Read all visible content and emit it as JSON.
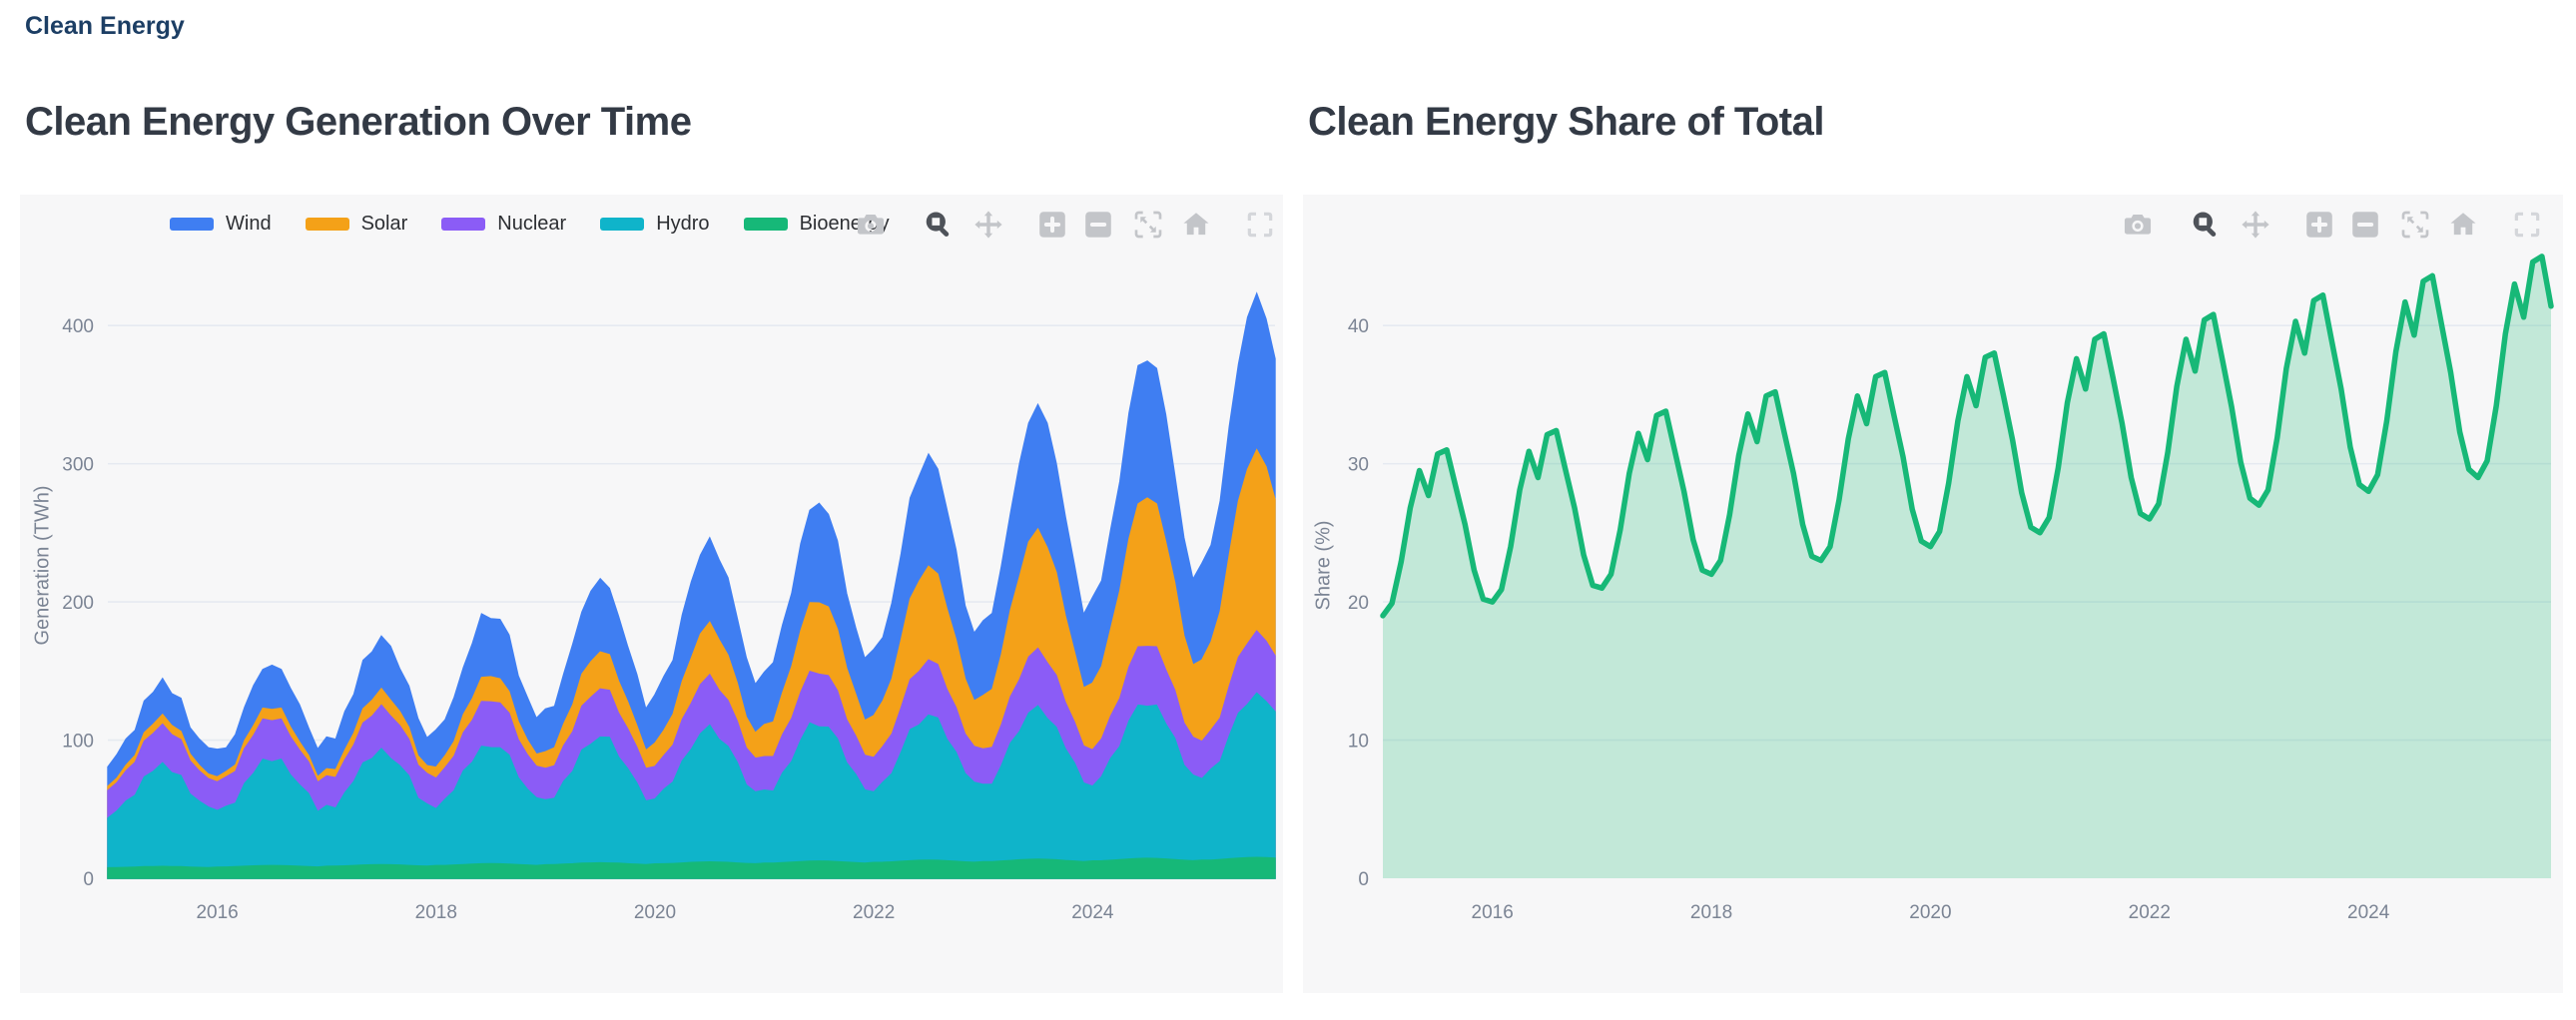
{
  "page": {
    "breadcrumb": "Clean Energy"
  },
  "colors": {
    "wind": "#3f7ef2",
    "solar": "#f4a118",
    "nuclear": "#8b5cf6",
    "hydro": "#0fb4ca",
    "bioenergy": "#16b878",
    "share_line": "#17b877",
    "share_fill": "rgba(23,184,119,0.24)",
    "card_bg": "#f7f7f8",
    "grid": "#e6eaf1",
    "tick_text": "#7b8494",
    "title_text": "#333a45",
    "breadcrumb_text": "#1c3e64",
    "modebar_icon": "#c3c5c9",
    "modebar_icon_active": "#4e5259",
    "modebar_icon_light": "#d4d6da"
  },
  "charts": [
    {
      "title": "Clean Energy Generation Over Time",
      "y_axis": {
        "title": "Generation (TWh)",
        "ticks": [
          0,
          100,
          200,
          300,
          400
        ],
        "range": [
          0,
          455
        ]
      },
      "x_axis": {
        "ticks": [
          2016,
          2018,
          2020,
          2022,
          2024
        ]
      },
      "legend": [
        {
          "label": "Wind",
          "color_key": "wind"
        },
        {
          "label": "Solar",
          "color_key": "solar"
        },
        {
          "label": "Nuclear",
          "color_key": "nuclear"
        },
        {
          "label": "Hydro",
          "color_key": "hydro"
        },
        {
          "label": "Bioenergy",
          "color_key": "bioenergy"
        }
      ],
      "modebar": [
        "camera",
        "zoom",
        "pan",
        "zoom-in",
        "zoom-out",
        "autoscale",
        "reset-home",
        "fullscreen"
      ],
      "modebar_active": "zoom"
    },
    {
      "title": "Clean Energy Share of Total",
      "y_axis": {
        "title": "Share (%)",
        "ticks": [
          0,
          10,
          20,
          30,
          40
        ],
        "range": [
          0,
          45.5
        ]
      },
      "x_axis": {
        "ticks": [
          2016,
          2018,
          2020,
          2022,
          2024
        ]
      },
      "legend": [],
      "modebar": [
        "camera",
        "zoom",
        "pan",
        "zoom-in",
        "zoom-out",
        "autoscale",
        "reset-home",
        "fullscreen"
      ],
      "modebar_active": "zoom"
    }
  ],
  "chart_data": [
    {
      "type": "area",
      "stacked": true,
      "title": "Clean Energy Generation Over Time",
      "xlabel": "",
      "ylabel": "Generation (TWh)",
      "ylim": [
        0,
        455
      ],
      "x_start": "2015-01",
      "x_freq": "monthly",
      "n_points": 129,
      "x_tick_labels": [
        "2016",
        "2018",
        "2020",
        "2022",
        "2024"
      ],
      "legend_position": "top-left-horizontal",
      "grid": true,
      "series": [
        {
          "name": "Bioenergy",
          "values": [
            7.5,
            7.6,
            7.8,
            8.0,
            8.3,
            8.4,
            8.5,
            8.4,
            8.3,
            8.0,
            7.8,
            7.6,
            8.0,
            8.1,
            8.3,
            8.6,
            8.9,
            9.1,
            9.2,
            9.1,
            8.9,
            8.6,
            8.3,
            8.1,
            8.6,
            8.7,
            8.9,
            9.2,
            9.5,
            9.7,
            9.8,
            9.7,
            9.5,
            9.2,
            8.9,
            8.7,
            9.2,
            9.2,
            9.5,
            9.8,
            10.1,
            10.4,
            10.5,
            10.4,
            10.1,
            9.8,
            9.5,
            9.2,
            9.7,
            9.8,
            10.1,
            10.4,
            10.8,
            11.0,
            11.1,
            11.0,
            10.8,
            10.4,
            10.1,
            9.8,
            10.3,
            10.4,
            10.6,
            11.0,
            11.4,
            11.6,
            11.8,
            11.6,
            11.4,
            11.0,
            10.6,
            10.4,
            10.8,
            10.9,
            11.2,
            11.6,
            12.0,
            12.3,
            12.4,
            12.3,
            12.0,
            11.6,
            11.2,
            10.9,
            11.4,
            11.5,
            11.8,
            12.2,
            12.6,
            12.9,
            13.1,
            12.9,
            12.6,
            12.2,
            11.8,
            11.5,
            11.9,
            12.0,
            12.4,
            12.8,
            13.3,
            13.6,
            13.7,
            13.6,
            13.3,
            12.8,
            12.4,
            12.0,
            12.5,
            12.6,
            12.9,
            13.4,
            13.9,
            14.2,
            14.4,
            14.2,
            13.9,
            13.4,
            12.9,
            12.6,
            13.0,
            13.1,
            13.5,
            14.0,
            14.5,
            14.9,
            15.0,
            14.9,
            14.5
          ]
        },
        {
          "name": "Hydro",
          "values": [
            36,
            41,
            48,
            52,
            65,
            69,
            75,
            68,
            66,
            53,
            48,
            44,
            41,
            44,
            46,
            60,
            67,
            77,
            75,
            77,
            66,
            59,
            53,
            40,
            44,
            42,
            53,
            61,
            74,
            77,
            84,
            77,
            72,
            65,
            49,
            45,
            41,
            48,
            54,
            68,
            74,
            85,
            84,
            84,
            79,
            63,
            55,
            49,
            47,
            48,
            60,
            67,
            82,
            86,
            91,
            91,
            77,
            69,
            59,
            46,
            47,
            54,
            59,
            74,
            82,
            93,
            99,
            89,
            84,
            73,
            57,
            52,
            53,
            52,
            65,
            73,
            88,
            100,
            97,
            97,
            89,
            72,
            64,
            53,
            51,
            58,
            64,
            79,
            95,
            98,
            105,
            103,
            88,
            79,
            64,
            58,
            56,
            56,
            69,
            85,
            93,
            106,
            111,
            102,
            96,
            81,
            71,
            57,
            54,
            61,
            74,
            82,
            100,
            111,
            110,
            111,
            98,
            88,
            69,
            62,
            59,
            66,
            71,
            89,
            105,
            111,
            119,
            113,
            106
          ]
        },
        {
          "name": "Nuclear",
          "values": [
            20,
            20.5,
            22,
            24,
            26,
            27.5,
            28,
            27.5,
            26,
            24,
            22,
            20.5,
            20.7,
            21.3,
            23,
            25.2,
            27.5,
            29.1,
            29.7,
            29.1,
            27.5,
            25.2,
            23,
            21.3,
            21.4,
            22.1,
            23.9,
            26.4,
            28.9,
            30.7,
            31.4,
            30.7,
            28.9,
            26.4,
            23.9,
            22.1,
            22.1,
            22.8,
            24.9,
            27.6,
            30.4,
            32.4,
            33.1,
            32.4,
            30.4,
            27.6,
            24.9,
            22.8,
            22.8,
            23.6,
            25.8,
            28.8,
            31.8,
            34,
            34.8,
            34,
            31.8,
            28.8,
            25.8,
            23.6,
            23.5,
            24.4,
            26.8,
            30,
            33.3,
            35.6,
            36.5,
            35.6,
            33.3,
            30,
            26.8,
            24.4,
            24.2,
            25.1,
            27.7,
            31.2,
            34.7,
            37.3,
            38.2,
            37.3,
            34.7,
            31.2,
            27.7,
            25.1,
            24.9,
            25.9,
            28.7,
            32.4,
            36.2,
            38.9,
            39.9,
            38.9,
            36.2,
            32.4,
            28.7,
            25.9,
            25.6,
            26.7,
            29.6,
            33.6,
            37.6,
            40.5,
            41.6,
            40.5,
            37.6,
            33.6,
            29.6,
            26.7,
            26.3,
            27.4,
            30.6,
            34.8,
            39.1,
            42.2,
            43.3,
            42.2,
            39.1,
            34.8,
            30.6,
            27.4,
            27,
            28.2,
            31.5,
            36,
            40.5,
            43.8,
            45,
            43.8,
            40.5
          ]
        },
        {
          "name": "Solar",
          "values": [
            3,
            3.3,
            4,
            5,
            6,
            6.7,
            7,
            6.7,
            6,
            5,
            4,
            3.3,
            3.6,
            3.9,
            4.7,
            5.9,
            7.1,
            7.9,
            8.2,
            7.9,
            7.1,
            5.9,
            4.7,
            3.9,
            5.2,
            5.7,
            6.9,
            8.6,
            10.3,
            11.5,
            12,
            11.5,
            10.3,
            8.6,
            6.9,
            5.7,
            8,
            8.7,
            10.6,
            13.1,
            15.6,
            17.5,
            18.2,
            17.5,
            15.6,
            13.1,
            10.6,
            8.7,
            12,
            13,
            15.7,
            19.4,
            23.1,
            25.8,
            26.8,
            25.8,
            23.1,
            19.4,
            15.7,
            13,
            17,
            18.4,
            22.3,
            27.5,
            32.8,
            36.6,
            38,
            36.6,
            32.8,
            27.5,
            22.3,
            18.4,
            23.2,
            25.1,
            30.3,
            37.4,
            44.5,
            49.7,
            51.6,
            49.7,
            44.5,
            37.4,
            30.3,
            25.1,
            30.4,
            32.9,
            39.8,
            49.1,
            58.4,
            65.3,
            67.8,
            65.3,
            58.4,
            49.1,
            39.8,
            32.9,
            38.8,
            42,
            50.7,
            62.6,
            74.5,
            83.2,
            86.4,
            83.2,
            74.5,
            62.6,
            50.7,
            42,
            48.4,
            52.3,
            63.1,
            77.9,
            92.7,
            103.5,
            107.4,
            103.5,
            92.7,
            77.9,
            63.1,
            52.3,
            59,
            63.8,
            77,
            95,
            113,
            126.2,
            131,
            126.2,
            113
          ]
        },
        {
          "name": "Wind",
          "values": [
            14,
            17,
            19,
            18,
            23,
            23,
            26,
            23,
            24,
            19,
            19,
            19,
            20,
            17,
            22,
            24,
            29,
            28,
            32,
            28,
            28,
            27,
            20,
            20,
            23,
            22,
            28,
            28,
            35,
            35,
            38,
            39,
            31,
            30,
            27,
            20,
            27,
            26,
            32,
            34,
            40,
            46,
            42,
            43,
            41,
            33,
            31,
            26,
            31,
            30,
            36,
            44,
            45,
            51,
            53,
            48,
            47,
            40,
            37,
            30,
            35,
            39,
            39,
            48,
            55,
            57,
            61,
            58,
            56,
            47,
            43,
            35,
            38,
            43,
            49,
            53,
            63,
            67,
            72,
            67,
            64,
            54,
            48,
            45,
            48,
            46,
            55,
            62,
            73,
            76,
            81,
            76,
            72,
            65,
            53,
            49,
            54,
            55,
            64,
            70,
            82,
            86,
            90,
            90,
            79,
            72,
            63,
            53,
            62,
            62,
            72,
            79,
            91,
            100,
            99,
            98,
            92,
            78,
            71,
            62,
            70,
            70,
            80,
            93,
            99,
            110,
            113,
            107,
            102
          ]
        }
      ]
    },
    {
      "type": "area",
      "stacked": false,
      "title": "Clean Energy Share of Total",
      "xlabel": "",
      "ylabel": "Share (%)",
      "ylim": [
        0,
        45.5
      ],
      "x_start": "2015-01",
      "x_freq": "monthly",
      "n_points": 129,
      "x_tick_labels": [
        "2016",
        "2018",
        "2020",
        "2022",
        "2024"
      ],
      "grid": true,
      "series": [
        {
          "name": "Clean Energy Share",
          "values": [
            19,
            19.9,
            22.9,
            26.8,
            29.5,
            27.7,
            30.7,
            31,
            28.3,
            25.6,
            22.3,
            20.2,
            20,
            20.9,
            24,
            28.1,
            30.9,
            29,
            32.1,
            32.4,
            29.6,
            26.8,
            23.4,
            21.2,
            21,
            22,
            25.2,
            29.3,
            32.2,
            30.3,
            33.5,
            33.8,
            30.9,
            28,
            24.5,
            22.3,
            22,
            23,
            26.3,
            30.6,
            33.6,
            31.6,
            34.9,
            35.2,
            32.2,
            29.3,
            25.6,
            23.3,
            23,
            24,
            27.4,
            31.8,
            34.9,
            32.9,
            36.3,
            36.6,
            33.5,
            30.5,
            26.7,
            24.4,
            24,
            25.1,
            28.6,
            33.1,
            36.3,
            34.2,
            37.7,
            38,
            34.9,
            31.7,
            27.9,
            25.4,
            25,
            26.1,
            29.7,
            34.4,
            37.6,
            35.4,
            39,
            39.4,
            36.2,
            32.9,
            29,
            26.4,
            26,
            27.1,
            30.8,
            35.6,
            39,
            36.7,
            40.4,
            40.8,
            37.5,
            34.1,
            30.1,
            27.5,
            27,
            28.1,
            31.9,
            36.9,
            40.3,
            38,
            41.8,
            42.2,
            38.8,
            35.4,
            31.2,
            28.5,
            28,
            29.2,
            33.1,
            38.1,
            41.7,
            39.3,
            43.2,
            43.6,
            40.1,
            36.6,
            32.3,
            29.6,
            29,
            30.2,
            34.2,
            39.4,
            43,
            40.6,
            44.6,
            45,
            41.4
          ]
        }
      ]
    }
  ]
}
